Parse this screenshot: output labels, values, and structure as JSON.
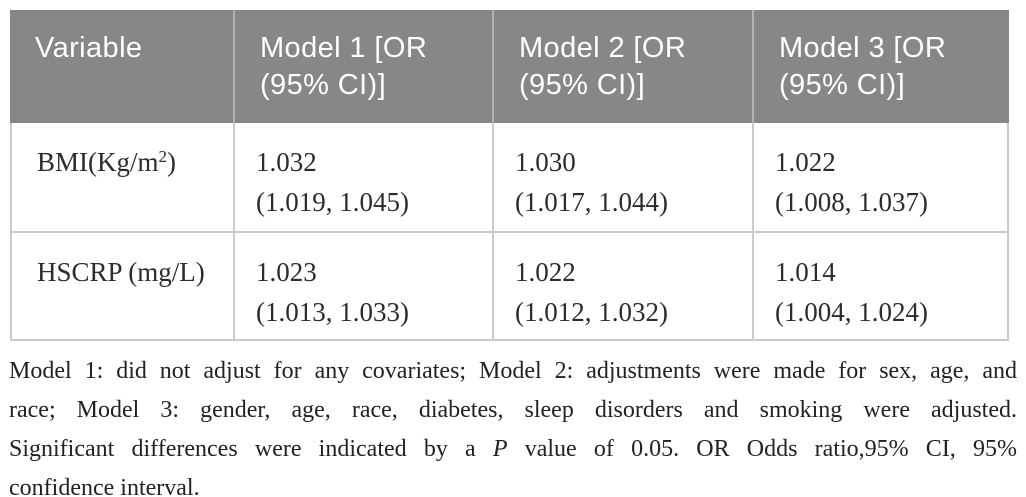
{
  "colors": {
    "page_bg": "#ffffff",
    "header_bg": "#878787",
    "header_separator": "#b3b3b3",
    "header_text": "#ffffff",
    "body_border": "#cbcbcb",
    "body_text": "#2c2c2c",
    "footnote_text": "#222222"
  },
  "table": {
    "header": {
      "columns": [
        "Variable",
        "Model 1 [OR (95% CI)]",
        "Model 2 [OR (95% CI)]",
        "Model 3 [OR (95% CI)]"
      ]
    },
    "rows": [
      {
        "label": {
          "base": "BMI(Kg/m",
          "sup": "2",
          "end": ")"
        },
        "values": [
          {
            "or": "1.032",
            "ci": "(1.019, 1.045)"
          },
          {
            "or": "1.030",
            "ci": "(1.017, 1.044)"
          },
          {
            "or": "1.022",
            "ci": "(1.008, 1.037)"
          }
        ]
      },
      {
        "label": {
          "base": "HSCRP (mg/L)",
          "sup": "",
          "end": ""
        },
        "values": [
          {
            "or": "1.023",
            "ci": "(1.013, 1.033)"
          },
          {
            "or": "1.022",
            "ci": "(1.012, 1.032)"
          },
          {
            "or": "1.014",
            "ci": "(1.004, 1.024)"
          }
        ]
      }
    ]
  },
  "footnote": {
    "line1": "Model 1: did not adjust for any covariates; Model 2: adjustments were made for sex, age, and",
    "line2": "race; Model 3: gender, age, race, diabetes, sleep disorders and smoking were adjusted.",
    "line3_pre": "Significant differences were indicated by a ",
    "line3_italic": "P",
    "line3_post": " value of 0.05. OR Odds ratio,95% CI, 95%",
    "line4": "confidence interval."
  }
}
